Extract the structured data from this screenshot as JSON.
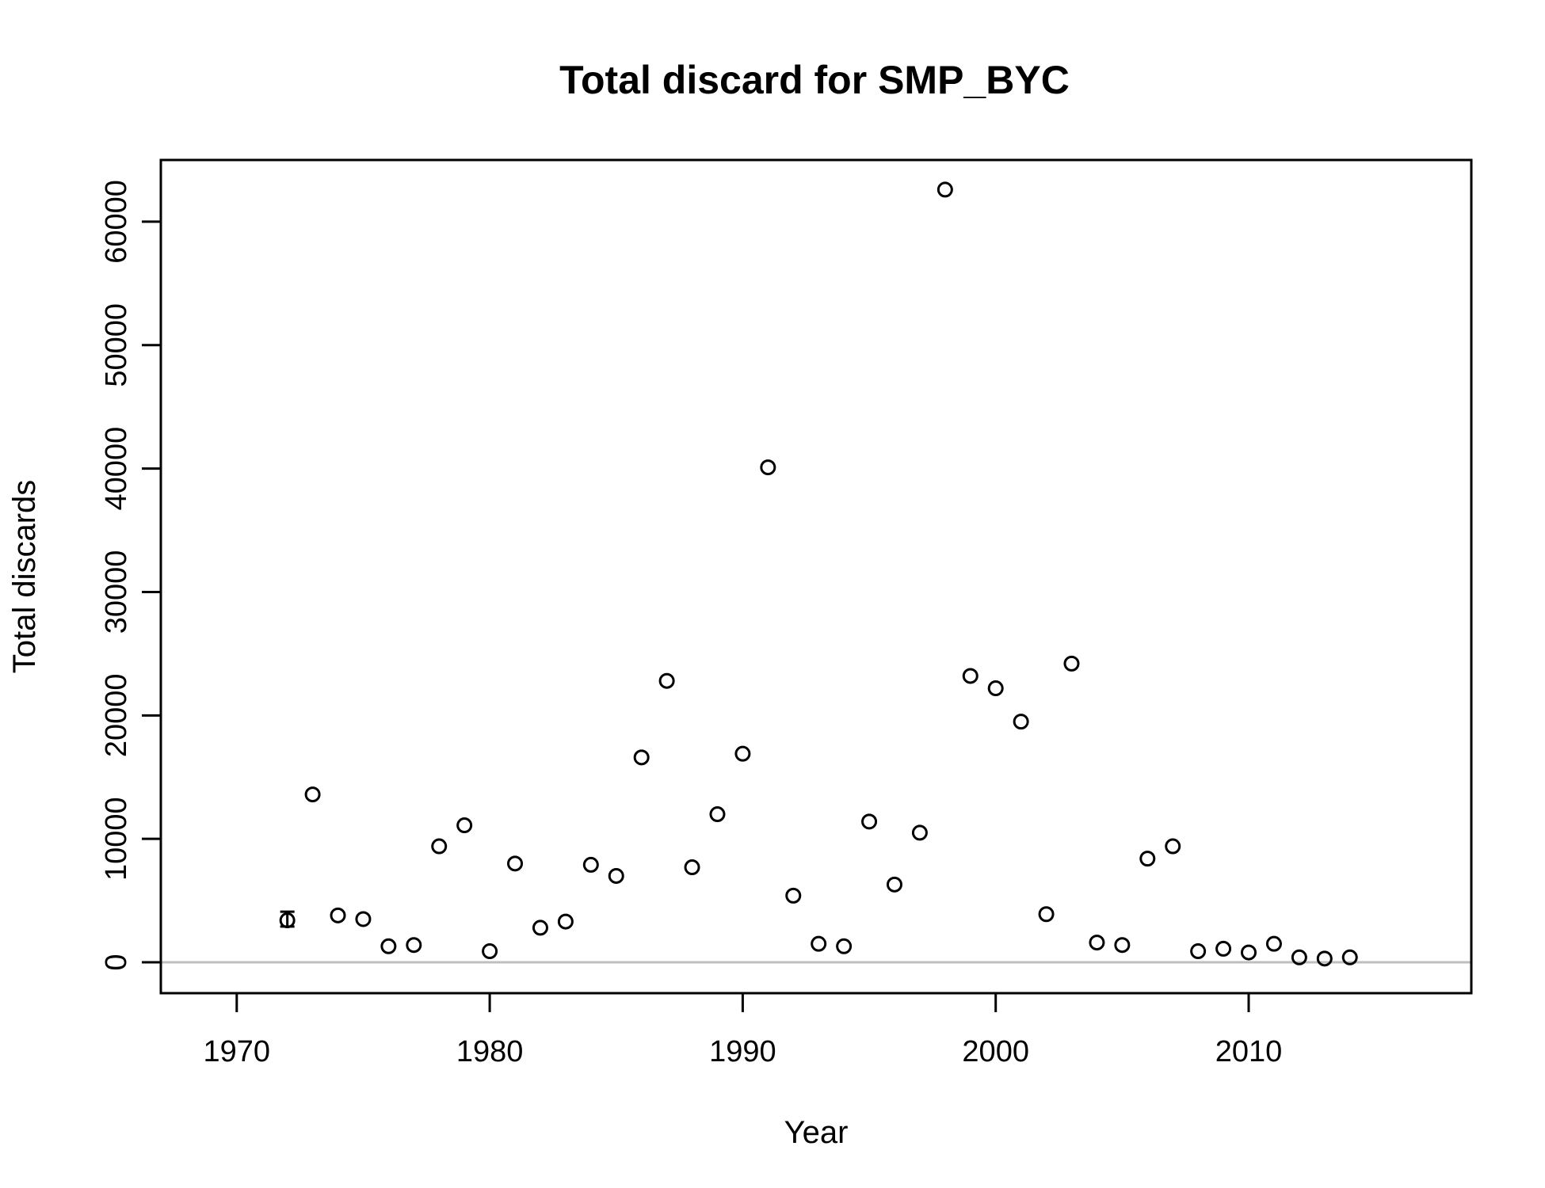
{
  "chart_data": {
    "type": "scatter",
    "title": "Total discard for SMP_BYC",
    "xlabel": "Year",
    "ylabel": "Total discards",
    "xlim": [
      1967,
      2018.8
    ],
    "ylim": [
      -2500,
      65000
    ],
    "xticks": [
      1970,
      1980,
      1990,
      2000,
      2010
    ],
    "yticks": [
      0,
      10000,
      20000,
      30000,
      40000,
      50000,
      60000
    ],
    "xtick_labels": [
      "1970",
      "1980",
      "1990",
      "2000",
      "2010"
    ],
    "ytick_labels": [
      "0",
      "10000",
      "20000",
      "30000",
      "40000",
      "50000",
      "60000"
    ],
    "reference_line": {
      "y": 0,
      "color": "#bebebe"
    },
    "marker_color": "#000000",
    "error_bars": [
      {
        "x": 1972,
        "low": 2900,
        "high": 4100
      }
    ],
    "series": [
      {
        "x": [
          1972,
          1973,
          1974,
          1975,
          1976,
          1977,
          1978,
          1979,
          1980,
          1981,
          1982,
          1983,
          1984,
          1985,
          1986,
          1987,
          1988,
          1989,
          1990,
          1991,
          1992,
          1993,
          1994,
          1995,
          1996,
          1997,
          1998,
          1999,
          2000,
          2001,
          2002,
          2003,
          2004,
          2005,
          2006,
          2007,
          2008,
          2009,
          2010,
          2011,
          2012,
          2013,
          2014
        ],
        "y": [
          3400,
          13600,
          3800,
          3500,
          1300,
          1400,
          9400,
          11100,
          900,
          8000,
          2800,
          3300,
          7900,
          7000,
          16600,
          22800,
          7700,
          12000,
          16900,
          40100,
          5400,
          1500,
          1300,
          11400,
          6300,
          10500,
          62600,
          23200,
          22200,
          19500,
          3900,
          24200,
          1600,
          1400,
          8400,
          9400,
          900,
          1100,
          800,
          1500,
          400,
          300,
          400
        ]
      }
    ]
  }
}
